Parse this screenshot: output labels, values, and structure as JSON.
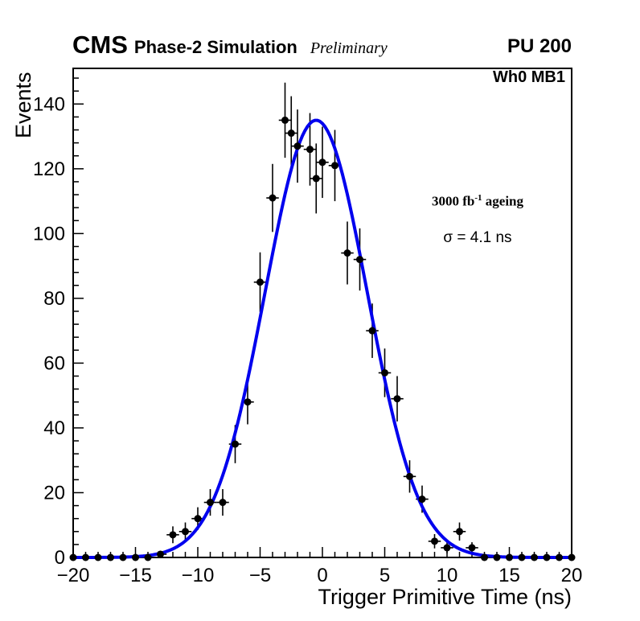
{
  "header": {
    "experiment": "CMS",
    "subtitle": "Phase-2 Simulation",
    "preliminary": "Preliminary",
    "pileup": "PU 200"
  },
  "plot_label": "Wh0 MB1",
  "annotation": {
    "lumi_prefix": "3000 fb",
    "lumi_sup": "-1",
    "lumi_suffix": " ageing",
    "sigma_text": "σ = 4.1 ns"
  },
  "chart_data": {
    "type": "scatter",
    "title": "",
    "xlabel": "Trigger Primitive Time (ns)",
    "ylabel": "Events",
    "xlim": [
      -20,
      20
    ],
    "ylim": [
      0,
      151
    ],
    "grid": false,
    "legend": false,
    "xticks": {
      "values": [
        -20,
        -15,
        -10,
        -5,
        0,
        5,
        10,
        15,
        20
      ],
      "labels": [
        "−20",
        "−15",
        "−10",
        "−5",
        "0",
        "5",
        "10",
        "15",
        "20"
      ],
      "minor_step": 1
    },
    "yticks": {
      "values": [
        0,
        20,
        40,
        60,
        80,
        100,
        120,
        140
      ],
      "labels": [
        "0",
        "20",
        "40",
        "60",
        "80",
        "100",
        "120",
        "140"
      ],
      "minor_step": 4
    },
    "marker_color": "#000000",
    "ex": 0.5,
    "points": [
      {
        "x": -20,
        "y": 0,
        "ey": 0
      },
      {
        "x": -19,
        "y": 0,
        "ey": 0
      },
      {
        "x": -18,
        "y": 0,
        "ey": 0
      },
      {
        "x": -17,
        "y": 0,
        "ey": 0
      },
      {
        "x": -16,
        "y": 0,
        "ey": 0
      },
      {
        "x": -15,
        "y": 0,
        "ey": 0
      },
      {
        "x": -14,
        "y": 0,
        "ey": 0
      },
      {
        "x": -13,
        "y": 1,
        "ey": 1
      },
      {
        "x": -12,
        "y": 7,
        "ey": 2.6
      },
      {
        "x": -11,
        "y": 8,
        "ey": 2.8
      },
      {
        "x": -10,
        "y": 12,
        "ey": 3.5
      },
      {
        "x": -9,
        "y": 17,
        "ey": 4.1
      },
      {
        "x": -8,
        "y": 17,
        "ey": 4.1
      },
      {
        "x": -7,
        "y": 35,
        "ey": 5.9
      },
      {
        "x": -6,
        "y": 48,
        "ey": 6.9
      },
      {
        "x": -5,
        "y": 85,
        "ey": 9.2
      },
      {
        "x": -4,
        "y": 111,
        "ey": 10.5
      },
      {
        "x": -3,
        "y": 135,
        "ey": 11.6
      },
      {
        "x": -2.5,
        "y": 131,
        "ey": 11.4
      },
      {
        "x": -2,
        "y": 127,
        "ey": 11.3
      },
      {
        "x": -1,
        "y": 126,
        "ey": 11.2
      },
      {
        "x": -0.5,
        "y": 117,
        "ey": 10.8
      },
      {
        "x": 0,
        "y": 122,
        "ey": 11
      },
      {
        "x": 1,
        "y": 121,
        "ey": 11
      },
      {
        "x": 2,
        "y": 94,
        "ey": 9.7
      },
      {
        "x": 3,
        "y": 92,
        "ey": 9.6
      },
      {
        "x": 4,
        "y": 70,
        "ey": 8.4
      },
      {
        "x": 5,
        "y": 57,
        "ey": 7.5
      },
      {
        "x": 6,
        "y": 49,
        "ey": 7
      },
      {
        "x": 7,
        "y": 25,
        "ey": 5
      },
      {
        "x": 8,
        "y": 18,
        "ey": 4.2
      },
      {
        "x": 9,
        "y": 5,
        "ey": 2.2
      },
      {
        "x": 10,
        "y": 3,
        "ey": 1.7
      },
      {
        "x": 11,
        "y": 8,
        "ey": 2.8
      },
      {
        "x": 12,
        "y": 3,
        "ey": 1.7
      },
      {
        "x": 13,
        "y": 0,
        "ey": 0
      },
      {
        "x": 14,
        "y": 0,
        "ey": 0
      },
      {
        "x": 15,
        "y": 0,
        "ey": 0
      },
      {
        "x": 16,
        "y": 0,
        "ey": 0
      },
      {
        "x": 17,
        "y": 0,
        "ey": 0
      },
      {
        "x": 18,
        "y": 0,
        "ey": 0
      },
      {
        "x": 19,
        "y": 0,
        "ey": 0
      },
      {
        "x": 20,
        "y": 0,
        "ey": 0
      }
    ],
    "fit": {
      "shape": "gaussian",
      "amplitude": 135,
      "mean": -0.5,
      "sigma": 4.1,
      "color": "#0000ee",
      "width": 4
    }
  }
}
